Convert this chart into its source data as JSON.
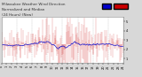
{
  "title_line1": "Milwaukee Weather Wind Direction",
  "title_line2": "Normalized and Median",
  "title_line3": "(24 Hours) (New)",
  "bg_color": "#d8d8d8",
  "plot_bg_color": "#ffffff",
  "line_color": "#cc0000",
  "median_color": "#0000cc",
  "grid_color": "#b0b0b0",
  "ylim": [
    0.5,
    5.5
  ],
  "yticks": [
    1,
    2,
    3,
    4,
    5
  ],
  "n_points": 288,
  "n_vgrid": 8,
  "title_fontsize": 3.0,
  "tick_fontsize": 2.5
}
